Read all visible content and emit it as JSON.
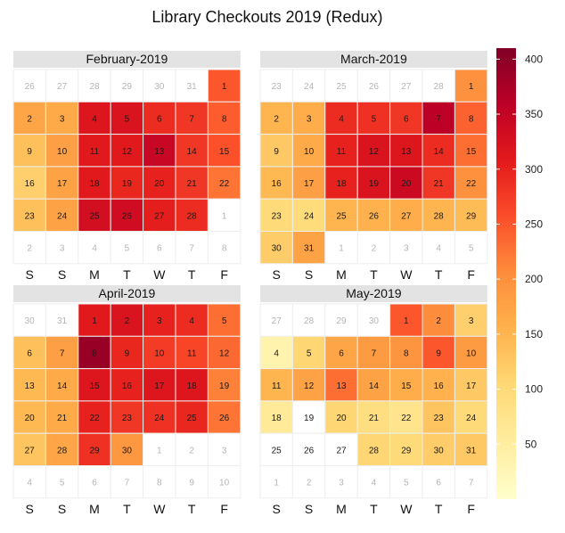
{
  "chart_data": {
    "type": "heatmap",
    "title": "Library Checkouts 2019 (Redux)",
    "weekday_labels": [
      "S",
      "S",
      "M",
      "T",
      "W",
      "T",
      "F"
    ],
    "colorbar": {
      "min": 0,
      "max": 410,
      "ticks": [
        50,
        100,
        150,
        200,
        250,
        300,
        350,
        400
      ],
      "colors": [
        "#ffffcc",
        "#ffeda0",
        "#fed976",
        "#feb24c",
        "#fd8d3c",
        "#fc4e2a",
        "#e31a1c",
        "#bd0026",
        "#800026"
      ]
    },
    "panels": [
      {
        "label": "February-2019",
        "weeks": [
          [
            {
              "d": "26",
              "v": null
            },
            {
              "d": "27",
              "v": null
            },
            {
              "d": "28",
              "v": null
            },
            {
              "d": "29",
              "v": null
            },
            {
              "d": "30",
              "v": null
            },
            {
              "d": "31",
              "v": null
            },
            {
              "d": "1",
              "v": 250
            }
          ],
          [
            {
              "d": "2",
              "v": 170
            },
            {
              "d": "3",
              "v": 165
            },
            {
              "d": "4",
              "v": 315
            },
            {
              "d": "5",
              "v": 320
            },
            {
              "d": "6",
              "v": 290
            },
            {
              "d": "7",
              "v": 280
            },
            {
              "d": "8",
              "v": 245
            }
          ],
          [
            {
              "d": "9",
              "v": 135
            },
            {
              "d": "10",
              "v": 180
            },
            {
              "d": "11",
              "v": 310
            },
            {
              "d": "12",
              "v": 310
            },
            {
              "d": "13",
              "v": 345
            },
            {
              "d": "14",
              "v": 280
            },
            {
              "d": "15",
              "v": 255
            }
          ],
          [
            {
              "d": "16",
              "v": 115
            },
            {
              "d": "17",
              "v": 175
            },
            {
              "d": "18",
              "v": 310
            },
            {
              "d": "19",
              "v": 295
            },
            {
              "d": "20",
              "v": 300
            },
            {
              "d": "21",
              "v": 280
            },
            {
              "d": "22",
              "v": 225
            }
          ],
          [
            {
              "d": "23",
              "v": 135
            },
            {
              "d": "24",
              "v": 175
            },
            {
              "d": "25",
              "v": 330
            },
            {
              "d": "26",
              "v": 335
            },
            {
              "d": "27",
              "v": 305
            },
            {
              "d": "28",
              "v": 290
            },
            {
              "d": "1",
              "v": null
            }
          ],
          [
            {
              "d": "2",
              "v": null
            },
            {
              "d": "3",
              "v": null
            },
            {
              "d": "4",
              "v": null
            },
            {
              "d": "5",
              "v": null
            },
            {
              "d": "6",
              "v": null
            },
            {
              "d": "7",
              "v": null
            },
            {
              "d": "8",
              "v": null
            }
          ]
        ]
      },
      {
        "label": "March-2019",
        "weeks": [
          [
            {
              "d": "23",
              "v": null
            },
            {
              "d": "24",
              "v": null
            },
            {
              "d": "25",
              "v": null
            },
            {
              "d": "26",
              "v": null
            },
            {
              "d": "27",
              "v": null
            },
            {
              "d": "28",
              "v": null
            },
            {
              "d": "1",
              "v": 200
            }
          ],
          [
            {
              "d": "2",
              "v": 150
            },
            {
              "d": "3",
              "v": 160
            },
            {
              "d": "4",
              "v": 290
            },
            {
              "d": "5",
              "v": 285
            },
            {
              "d": "6",
              "v": 280
            },
            {
              "d": "7",
              "v": 360
            },
            {
              "d": "8",
              "v": 240
            }
          ],
          [
            {
              "d": "9",
              "v": 125
            },
            {
              "d": "10",
              "v": 165
            },
            {
              "d": "11",
              "v": 300
            },
            {
              "d": "12",
              "v": 320
            },
            {
              "d": "13",
              "v": 315
            },
            {
              "d": "14",
              "v": 290
            },
            {
              "d": "15",
              "v": 230
            }
          ],
          [
            {
              "d": "16",
              "v": 145
            },
            {
              "d": "17",
              "v": 180
            },
            {
              "d": "18",
              "v": 300
            },
            {
              "d": "19",
              "v": 320
            },
            {
              "d": "20",
              "v": 340
            },
            {
              "d": "21",
              "v": 280
            },
            {
              "d": "22",
              "v": 200
            }
          ],
          [
            {
              "d": "23",
              "v": 100
            },
            {
              "d": "24",
              "v": 95
            },
            {
              "d": "25",
              "v": 150
            },
            {
              "d": "26",
              "v": 155
            },
            {
              "d": "27",
              "v": 160
            },
            {
              "d": "28",
              "v": 150
            },
            {
              "d": "29",
              "v": 140
            }
          ],
          [
            {
              "d": "30",
              "v": 120
            },
            {
              "d": "31",
              "v": 175
            },
            {
              "d": "1",
              "v": null
            },
            {
              "d": "2",
              "v": null
            },
            {
              "d": "3",
              "v": null
            },
            {
              "d": "4",
              "v": null
            },
            {
              "d": "5",
              "v": null
            }
          ]
        ]
      },
      {
        "label": "April-2019",
        "weeks": [
          [
            {
              "d": "30",
              "v": null
            },
            {
              "d": "31",
              "v": null
            },
            {
              "d": "1",
              "v": 310
            },
            {
              "d": "2",
              "v": 320
            },
            {
              "d": "3",
              "v": 300
            },
            {
              "d": "4",
              "v": 290
            },
            {
              "d": "5",
              "v": 230
            }
          ],
          [
            {
              "d": "6",
              "v": 135
            },
            {
              "d": "7",
              "v": 180
            },
            {
              "d": "8",
              "v": 390
            },
            {
              "d": "9",
              "v": 295
            },
            {
              "d": "10",
              "v": 275
            },
            {
              "d": "11",
              "v": 265
            },
            {
              "d": "12",
              "v": 235
            }
          ],
          [
            {
              "d": "13",
              "v": 145
            },
            {
              "d": "14",
              "v": 165
            },
            {
              "d": "15",
              "v": 315
            },
            {
              "d": "16",
              "v": 300
            },
            {
              "d": "17",
              "v": 315
            },
            {
              "d": "18",
              "v": 315
            },
            {
              "d": "19",
              "v": 215
            }
          ],
          [
            {
              "d": "20",
              "v": 145
            },
            {
              "d": "21",
              "v": 165
            },
            {
              "d": "22",
              "v": 300
            },
            {
              "d": "23",
              "v": 280
            },
            {
              "d": "24",
              "v": 285
            },
            {
              "d": "25",
              "v": 295
            },
            {
              "d": "26",
              "v": 225
            }
          ],
          [
            {
              "d": "27",
              "v": 130
            },
            {
              "d": "28",
              "v": 170
            },
            {
              "d": "29",
              "v": 285
            },
            {
              "d": "30",
              "v": 190
            },
            {
              "d": "1",
              "v": null
            },
            {
              "d": "2",
              "v": null
            },
            {
              "d": "3",
              "v": null
            }
          ],
          [
            {
              "d": "4",
              "v": null
            },
            {
              "d": "5",
              "v": null
            },
            {
              "d": "6",
              "v": null
            },
            {
              "d": "7",
              "v": null
            },
            {
              "d": "8",
              "v": null
            },
            {
              "d": "9",
              "v": null
            },
            {
              "d": "10",
              "v": null
            }
          ]
        ]
      },
      {
        "label": "May-2019",
        "weeks": [
          [
            {
              "d": "27",
              "v": null
            },
            {
              "d": "28",
              "v": null
            },
            {
              "d": "29",
              "v": null
            },
            {
              "d": "30",
              "v": null
            },
            {
              "d": "1",
              "v": 250
            },
            {
              "d": "2",
              "v": 205
            },
            {
              "d": "3",
              "v": 115
            }
          ],
          [
            {
              "d": "4",
              "v": 35
            },
            {
              "d": "5",
              "v": 105
            },
            {
              "d": "6",
              "v": 170
            },
            {
              "d": "7",
              "v": 185
            },
            {
              "d": "8",
              "v": 195
            },
            {
              "d": "9",
              "v": 250
            },
            {
              "d": "10",
              "v": 185
            }
          ],
          [
            {
              "d": "11",
              "v": 150
            },
            {
              "d": "12",
              "v": 175
            },
            {
              "d": "13",
              "v": 230
            },
            {
              "d": "14",
              "v": 175
            },
            {
              "d": "15",
              "v": 160
            },
            {
              "d": "16",
              "v": 155
            },
            {
              "d": "17",
              "v": 125
            }
          ],
          [
            {
              "d": "18",
              "v": 60
            },
            {
              "d": "19",
              "v": 0
            },
            {
              "d": "20",
              "v": 105
            },
            {
              "d": "21",
              "v": 90
            },
            {
              "d": "22",
              "v": 75
            },
            {
              "d": "23",
              "v": 130
            },
            {
              "d": "24",
              "v": 100
            }
          ],
          [
            {
              "d": "25",
              "v": 0
            },
            {
              "d": "26",
              "v": 0
            },
            {
              "d": "27",
              "v": 0
            },
            {
              "d": "28",
              "v": 105
            },
            {
              "d": "29",
              "v": 100
            },
            {
              "d": "30",
              "v": 120
            },
            {
              "d": "31",
              "v": 125
            }
          ],
          [
            {
              "d": "1",
              "v": null
            },
            {
              "d": "2",
              "v": null
            },
            {
              "d": "3",
              "v": null
            },
            {
              "d": "4",
              "v": null
            },
            {
              "d": "5",
              "v": null
            },
            {
              "d": "6",
              "v": null
            },
            {
              "d": "7",
              "v": null
            }
          ]
        ]
      }
    ]
  }
}
